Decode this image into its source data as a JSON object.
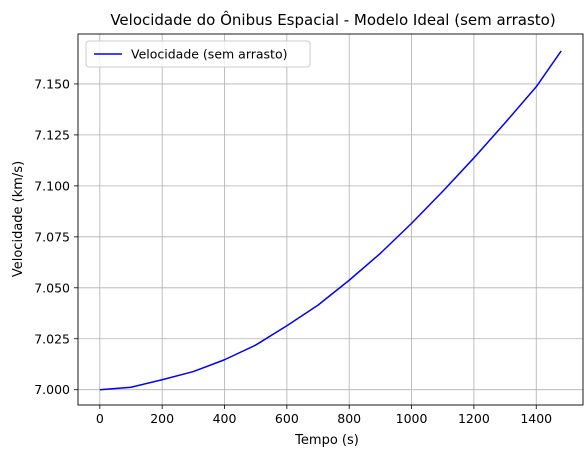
{
  "chart_data": {
    "type": "line",
    "title": "Velocidade do Ônibus Espacial - Modelo Ideal (sem arrasto)",
    "xlabel": "Tempo (s)",
    "ylabel": "Velocidade (km/s)",
    "xlim": [
      -70,
      1550
    ],
    "ylim": [
      6.9925,
      7.1745
    ],
    "xticks": [
      0,
      200,
      400,
      600,
      800,
      1000,
      1200,
      1400
    ],
    "xtick_labels": [
      "0",
      "200",
      "400",
      "600",
      "800",
      "1000",
      "1200",
      "1400"
    ],
    "yticks": [
      7.0,
      7.025,
      7.05,
      7.075,
      7.1,
      7.125,
      7.15
    ],
    "ytick_labels": [
      "7.000",
      "7.025",
      "7.050",
      "7.075",
      "7.100",
      "7.125",
      "7.150"
    ],
    "grid": true,
    "legend_position": "top-left",
    "series": [
      {
        "name": "Velocidade (sem arrasto)",
        "color": "#0000ff",
        "x": [
          0,
          100,
          200,
          300,
          400,
          500,
          600,
          700,
          800,
          900,
          1000,
          1100,
          1200,
          1300,
          1400,
          1480
        ],
        "y": [
          7.0,
          7.0012,
          7.0049,
          7.0089,
          7.0147,
          7.0219,
          7.0314,
          7.0415,
          7.0537,
          7.0669,
          7.0816,
          7.0973,
          7.1137,
          7.1309,
          7.1486,
          7.1662
        ]
      }
    ]
  }
}
